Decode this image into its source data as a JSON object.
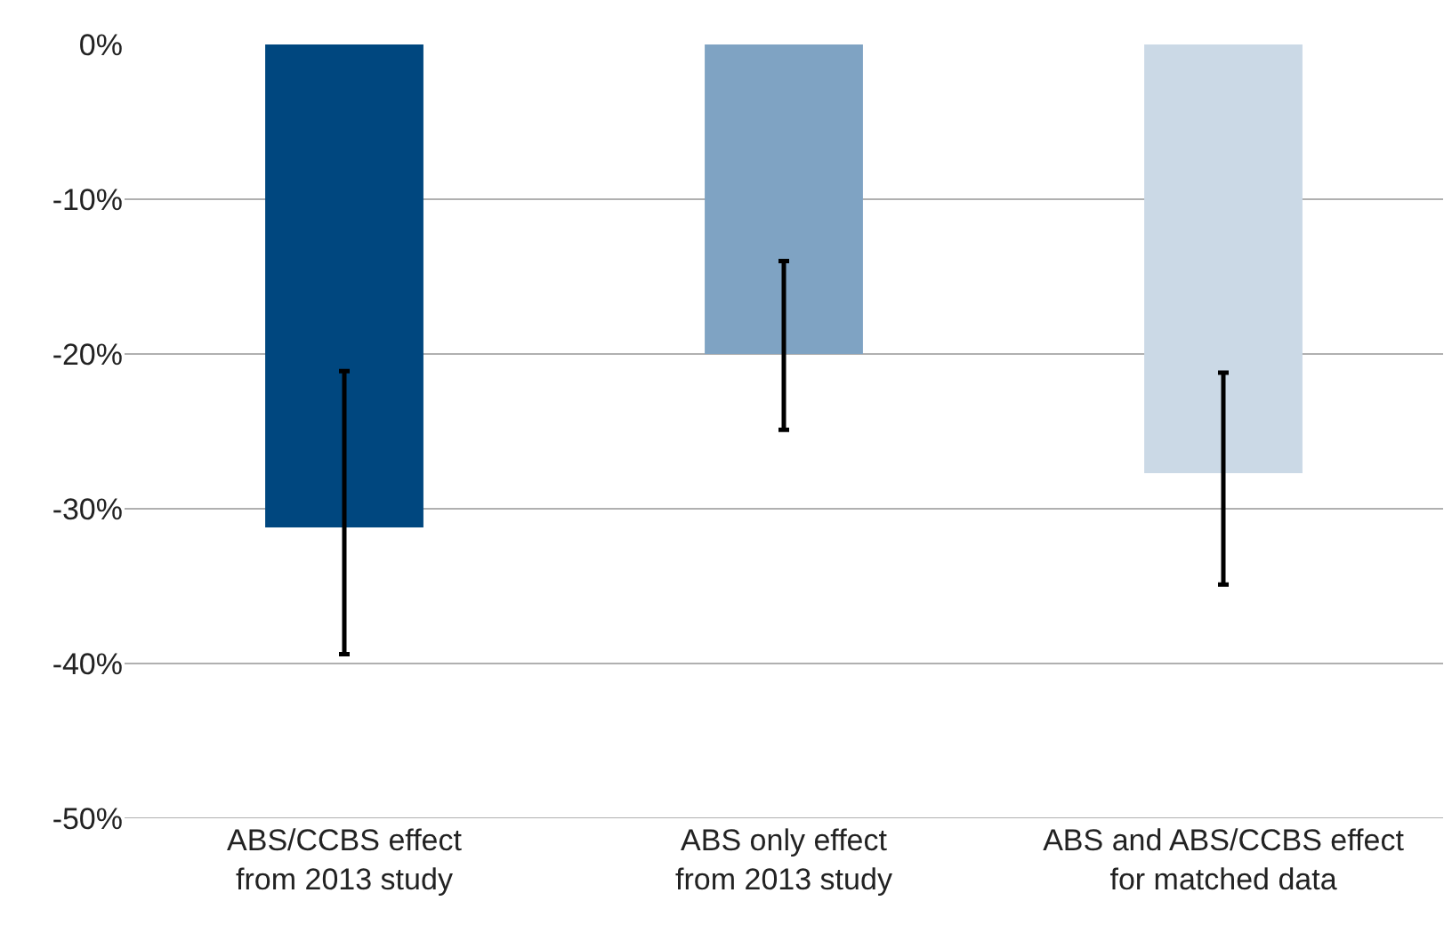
{
  "chart_data": {
    "type": "bar",
    "categories": [
      "ABS/CCBS effect\nfrom 2013 study",
      "ABS only effect\nfrom 2013 study",
      "ABS and ABS/CCBS effect\nfor matched data"
    ],
    "values": [
      -31.2,
      -20.0,
      -27.7
    ],
    "colors": [
      "#00477f",
      "#7fa3c3",
      "#cbd9e6"
    ],
    "errors": [
      [
        -39.4,
        -21.1
      ],
      [
        -24.9,
        -14.0
      ],
      [
        -34.9,
        -21.2
      ]
    ],
    "ylim": [
      -50,
      0
    ],
    "yticks": [
      {
        "value": 0,
        "label": "0%"
      },
      {
        "value": -10,
        "label": "-10%"
      },
      {
        "value": -20,
        "label": "-20%"
      },
      {
        "value": -30,
        "label": "-30%"
      },
      {
        "value": -40,
        "label": "-40%"
      },
      {
        "value": -50,
        "label": "-50%"
      }
    ],
    "grid": "y"
  }
}
